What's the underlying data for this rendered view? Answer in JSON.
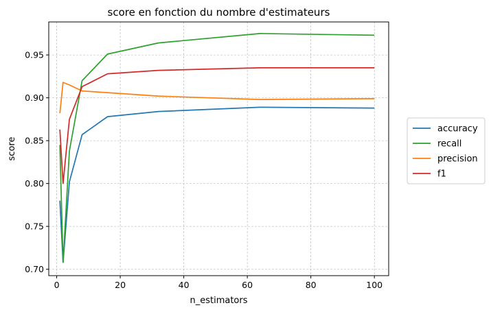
{
  "chart_data": {
    "type": "line",
    "title": "score en fonction du nombre d'estimateurs",
    "xlabel": "n_estimators",
    "ylabel": "score",
    "xlim": [
      -2.5,
      104.5
    ],
    "ylim": [
      0.6925,
      0.9885
    ],
    "xticks": [
      0,
      20,
      40,
      60,
      80,
      100
    ],
    "xtick_labels": [
      "0",
      "20",
      "40",
      "60",
      "80",
      "100"
    ],
    "yticks": [
      0.7,
      0.75,
      0.8,
      0.85,
      0.9,
      0.95
    ],
    "ytick_labels": [
      "0.70",
      "0.75",
      "0.80",
      "0.85",
      "0.90",
      "0.95"
    ],
    "grid": true,
    "legend_position": "outside-right",
    "x": [
      1,
      2,
      4,
      8,
      16,
      32,
      64,
      100
    ],
    "series": [
      {
        "name": "accuracy",
        "color": "#1f77b4",
        "values": [
          0.78,
          0.708,
          0.802,
          0.857,
          0.878,
          0.884,
          0.889,
          0.888
        ]
      },
      {
        "name": "recall",
        "color": "#2ca02c",
        "values": [
          0.845,
          0.708,
          0.838,
          0.92,
          0.951,
          0.964,
          0.975,
          0.973
        ]
      },
      {
        "name": "precision",
        "color": "#ff7f0e",
        "values": [
          0.882,
          0.918,
          0.915,
          0.908,
          0.906,
          0.902,
          0.898,
          0.899
        ]
      },
      {
        "name": "f1",
        "color": "#d62728",
        "values": [
          0.863,
          0.8,
          0.875,
          0.913,
          0.928,
          0.932,
          0.935,
          0.935
        ]
      }
    ]
  }
}
